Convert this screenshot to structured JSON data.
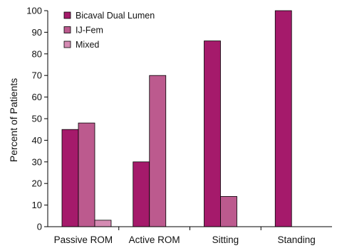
{
  "chart_data": {
    "type": "bar",
    "title": "",
    "xlabel": "",
    "ylabel": "Percent of Patients",
    "ylim": [
      0,
      100
    ],
    "yticks": [
      0,
      10,
      20,
      30,
      40,
      50,
      60,
      70,
      80,
      90,
      100
    ],
    "categories": [
      "Passive ROM",
      "Active ROM",
      "Sitting",
      "Standing"
    ],
    "legend_position": "top-left",
    "grid": false,
    "series": [
      {
        "name": "Bicaval Dual Lumen",
        "color": "#a51a6b",
        "values": [
          45,
          30,
          86,
          100
        ]
      },
      {
        "name": "IJ-Fem",
        "color": "#bc5a8e",
        "values": [
          48,
          70,
          14,
          0
        ]
      },
      {
        "name": "Mixed",
        "color": "#d58bb3",
        "values": [
          3,
          0,
          0,
          0
        ]
      }
    ]
  }
}
